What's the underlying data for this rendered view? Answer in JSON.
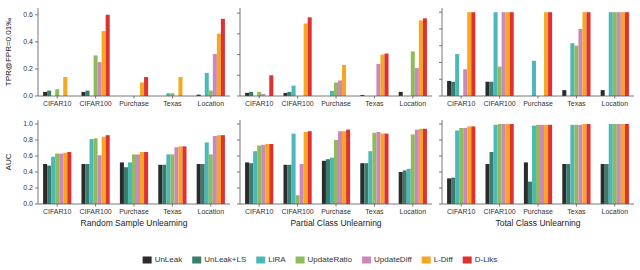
{
  "chart_data": [
    {
      "type": "bar",
      "ylabel": "TPR@FPR=0.01‰",
      "categories": [
        "CIFAR10",
        "CIFAR100",
        "Purchase",
        "Texas",
        "Location"
      ],
      "series": [
        {
          "name": "UnLeak",
          "color": "#2b2b2b",
          "values": [
            0.03,
            0.03,
            0.0,
            0.0,
            0.01
          ]
        },
        {
          "name": "UnLeak+LS",
          "color": "#3a7d6e",
          "values": [
            0.04,
            0.04,
            0.0,
            0.0,
            0.0
          ]
        },
        {
          "name": "LiRA",
          "color": "#4db8b8",
          "values": [
            0.0,
            0.0,
            0.0,
            0.02,
            0.17
          ]
        },
        {
          "name": "UpdateRatio",
          "color": "#8fbc5a",
          "values": [
            0.05,
            0.3,
            0.0,
            0.02,
            0.04
          ]
        },
        {
          "name": "UpdateDiff",
          "color": "#cc88bb",
          "values": [
            0.0,
            0.25,
            0.0,
            0.0,
            0.31
          ]
        },
        {
          "name": "L-Diff",
          "color": "#f5a623",
          "values": [
            0.14,
            0.48,
            0.1,
            0.14,
            0.46
          ]
        },
        {
          "name": "D-Liks",
          "color": "#e03030",
          "values": [
            0.0,
            0.6,
            0.14,
            0.0,
            0.57
          ]
        }
      ],
      "ylim": [
        0,
        0.65
      ],
      "yticks": [
        {
          "value": 0,
          "label": "0.0"
        },
        0.2,
        0.4,
        0.6
      ],
      "legend": "bottom"
    },
    {
      "type": "bar",
      "categories": [
        "CIFAR10",
        "CIFAR100",
        "Purchase",
        "Texas",
        "Location"
      ],
      "series": [
        {
          "name": "UnLeak",
          "color": "#2b2b2b",
          "values": [
            0.03,
            0.03,
            0.0,
            0.01,
            0.04
          ]
        },
        {
          "name": "UnLeak+LS",
          "color": "#3a7d6e",
          "values": [
            0.04,
            0.04,
            0.0,
            0.0,
            0.0
          ]
        },
        {
          "name": "LiRA",
          "color": "#4db8b8",
          "values": [
            0.0,
            0.1,
            0.05,
            0.0,
            0.0
          ]
        },
        {
          "name": "UpdateRatio",
          "color": "#8fbc5a",
          "values": [
            0.04,
            0.0,
            0.13,
            0.0,
            0.43
          ]
        },
        {
          "name": "UpdateDiff",
          "color": "#cc88bb",
          "values": [
            0.02,
            0.0,
            0.15,
            0.31,
            0.27
          ]
        },
        {
          "name": "L-Diff",
          "color": "#f5a623",
          "values": [
            0.0,
            0.7,
            0.3,
            0.4,
            0.73
          ]
        },
        {
          "name": "D-Liks",
          "color": "#e03030",
          "values": [
            0.2,
            0.76,
            0.0,
            0.41,
            0.75
          ]
        }
      ],
      "ylim": [
        0,
        0.85
      ],
      "yticks": [
        0,
        0.2,
        0.4,
        0.6,
        0.8
      ],
      "tick_labels": "x"
    },
    {
      "type": "bar",
      "categories": [
        "CIFAR10",
        "CIFAR100",
        "Purchase",
        "Texas",
        "Location"
      ],
      "series": [
        {
          "name": "UnLeak",
          "color": "#2b2b2b",
          "values": [
            0.18,
            0.17,
            0.0,
            0.07,
            0.07
          ]
        },
        {
          "name": "UnLeak+LS",
          "color": "#3a7d6e",
          "values": [
            0.17,
            0.17,
            0.0,
            0.0,
            0.0
          ]
        },
        {
          "name": "LiRA",
          "color": "#4db8b8",
          "values": [
            0.5,
            1.0,
            0.42,
            0.63,
            1.0
          ]
        },
        {
          "name": "UpdateRatio",
          "color": "#8fbc5a",
          "values": [
            0.0,
            0.35,
            0.0,
            0.6,
            1.0
          ]
        },
        {
          "name": "UpdateDiff",
          "color": "#cc88bb",
          "values": [
            0.32,
            1.0,
            0.0,
            0.8,
            1.0
          ]
        },
        {
          "name": "L-Diff",
          "color": "#f5a623",
          "values": [
            1.0,
            1.0,
            1.0,
            1.0,
            1.0
          ]
        },
        {
          "name": "D-Liks",
          "color": "#e03030",
          "values": [
            1.0,
            1.0,
            1.0,
            1.0,
            1.0
          ]
        }
      ],
      "ylim": [
        0,
        1.05
      ],
      "yticks": [
        0,
        0.2,
        0.4,
        0.6,
        0.8,
        1
      ],
      "tick_labels": "x"
    },
    {
      "type": "bar",
      "ylabel": "AUC",
      "xlabel": "Random Sample Unlearning",
      "categories": [
        "CIFAR10",
        "CIFAR100",
        "Purchase",
        "Texas",
        "Location"
      ],
      "series": [
        {
          "name": "UnLeak",
          "color": "#2b2b2b",
          "values": [
            0.5,
            0.5,
            0.52,
            0.49,
            0.5
          ]
        },
        {
          "name": "UnLeak+LS",
          "color": "#3a7d6e",
          "values": [
            0.48,
            0.5,
            0.46,
            0.49,
            0.5
          ]
        },
        {
          "name": "LiRA",
          "color": "#4db8b8",
          "values": [
            0.59,
            0.81,
            0.52,
            0.62,
            0.77
          ]
        },
        {
          "name": "UpdateRatio",
          "color": "#8fbc5a",
          "values": [
            0.63,
            0.82,
            0.62,
            0.62,
            0.62
          ]
        },
        {
          "name": "UpdateDiff",
          "color": "#cc88bb",
          "values": [
            0.63,
            0.61,
            0.62,
            0.71,
            0.85
          ]
        },
        {
          "name": "L-Diff",
          "color": "#f5a623",
          "values": [
            0.64,
            0.84,
            0.65,
            0.72,
            0.86
          ]
        },
        {
          "name": "D-Liks",
          "color": "#e03030",
          "values": [
            0.65,
            0.86,
            0.65,
            0.72,
            0.86
          ]
        }
      ],
      "ylim": [
        0,
        1.05
      ],
      "yticks": [
        {
          "value": 0,
          "label": "0.0"
        },
        0.2,
        0.4,
        0.6,
        0.8,
        {
          "value": 1,
          "label": "1.0"
        }
      ]
    },
    {
      "type": "bar",
      "xlabel": "Partial Class Unlearning",
      "categories": [
        "CIFAR10",
        "CIFAR100",
        "Purchase",
        "Texas",
        "Location"
      ],
      "series": [
        {
          "name": "UnLeak",
          "color": "#2b2b2b",
          "values": [
            0.52,
            0.49,
            0.54,
            0.51,
            0.4
          ]
        },
        {
          "name": "UnLeak+LS",
          "color": "#3a7d6e",
          "values": [
            0.51,
            0.49,
            0.56,
            0.51,
            0.42
          ]
        },
        {
          "name": "LiRA",
          "color": "#4db8b8",
          "values": [
            0.66,
            0.88,
            0.58,
            0.66,
            0.44
          ]
        },
        {
          "name": "UpdateRatio",
          "color": "#8fbc5a",
          "values": [
            0.73,
            0.11,
            0.8,
            0.89,
            0.87
          ]
        },
        {
          "name": "UpdateDiff",
          "color": "#cc88bb",
          "values": [
            0.74,
            0.5,
            0.91,
            0.9,
            0.93
          ]
        },
        {
          "name": "L-Diff",
          "color": "#f5a623",
          "values": [
            0.75,
            0.9,
            0.91,
            0.88,
            0.94
          ]
        },
        {
          "name": "D-Liks",
          "color": "#e03030",
          "values": [
            0.75,
            0.91,
            0.93,
            0.88,
            0.94
          ]
        }
      ],
      "ylim": [
        0,
        1.05
      ],
      "yticks": [
        0,
        0.2,
        0.4,
        0.6,
        0.8,
        1
      ],
      "tick_labels": "x"
    },
    {
      "type": "bar",
      "xlabel": "Total Class Unlearning",
      "categories": [
        "CIFAR10",
        "CIFAR100",
        "Purchase",
        "Texas",
        "Location"
      ],
      "series": [
        {
          "name": "UnLeak",
          "color": "#2b2b2b",
          "values": [
            0.32,
            0.5,
            0.52,
            0.5,
            0.5
          ]
        },
        {
          "name": "UnLeak+LS",
          "color": "#3a7d6e",
          "values": [
            0.33,
            0.65,
            0.28,
            0.5,
            0.5
          ]
        },
        {
          "name": "LiRA",
          "color": "#4db8b8",
          "values": [
            0.92,
            0.99,
            0.98,
            0.99,
            1.0
          ]
        },
        {
          "name": "UpdateRatio",
          "color": "#8fbc5a",
          "values": [
            0.95,
            1.0,
            0.99,
            0.99,
            1.0
          ]
        },
        {
          "name": "UpdateDiff",
          "color": "#cc88bb",
          "values": [
            0.95,
            1.0,
            0.99,
            0.99,
            1.0
          ]
        },
        {
          "name": "L-Diff",
          "color": "#f5a623",
          "values": [
            0.97,
            1.0,
            0.99,
            1.0,
            1.0
          ]
        },
        {
          "name": "D-Liks",
          "color": "#e03030",
          "values": [
            0.97,
            1.0,
            0.99,
            1.0,
            1.0
          ]
        }
      ],
      "ylim": [
        0,
        1.05
      ],
      "yticks": [
        0,
        0.2,
        0.4,
        0.6,
        0.8,
        1
      ],
      "tick_labels": "x"
    }
  ]
}
